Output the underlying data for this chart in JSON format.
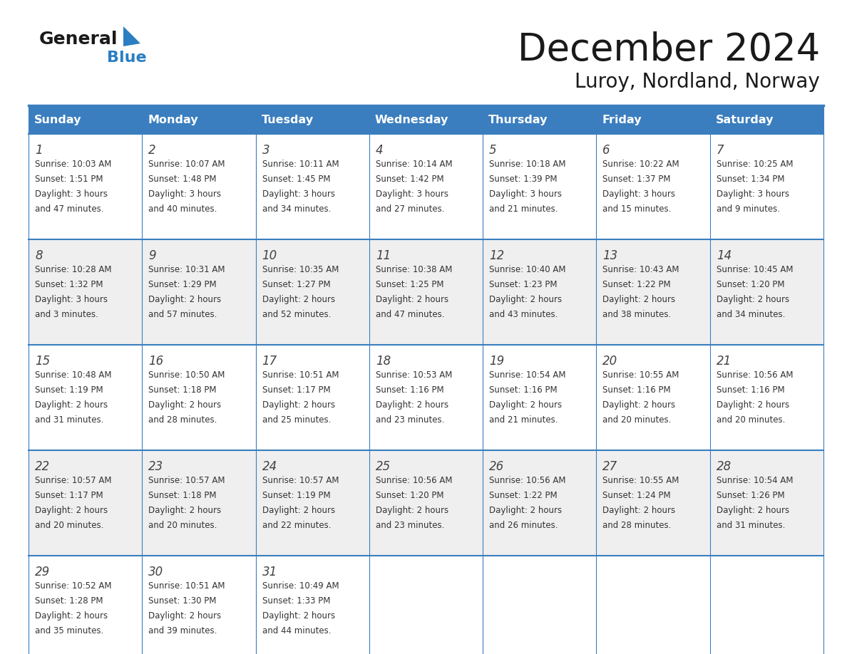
{
  "title": "December 2024",
  "subtitle": "Luroy, Nordland, Norway",
  "header_color": "#3A7EBF",
  "header_text_color": "#FFFFFF",
  "grid_line_color": "#3A7EBF",
  "bg_color": "#FFFFFF",
  "alt_row_color": "#EFEFEF",
  "day_headers": [
    "Sunday",
    "Monday",
    "Tuesday",
    "Wednesday",
    "Thursday",
    "Friday",
    "Saturday"
  ],
  "weeks": [
    [
      {
        "day": "1",
        "sunrise": "10:03 AM",
        "sunset": "1:51 PM",
        "daylight_h": "3 hours",
        "daylight_m": "47 minutes"
      },
      {
        "day": "2",
        "sunrise": "10:07 AM",
        "sunset": "1:48 PM",
        "daylight_h": "3 hours",
        "daylight_m": "40 minutes"
      },
      {
        "day": "3",
        "sunrise": "10:11 AM",
        "sunset": "1:45 PM",
        "daylight_h": "3 hours",
        "daylight_m": "34 minutes"
      },
      {
        "day": "4",
        "sunrise": "10:14 AM",
        "sunset": "1:42 PM",
        "daylight_h": "3 hours",
        "daylight_m": "27 minutes"
      },
      {
        "day": "5",
        "sunrise": "10:18 AM",
        "sunset": "1:39 PM",
        "daylight_h": "3 hours",
        "daylight_m": "21 minutes"
      },
      {
        "day": "6",
        "sunrise": "10:22 AM",
        "sunset": "1:37 PM",
        "daylight_h": "3 hours",
        "daylight_m": "15 minutes"
      },
      {
        "day": "7",
        "sunrise": "10:25 AM",
        "sunset": "1:34 PM",
        "daylight_h": "3 hours",
        "daylight_m": "9 minutes"
      }
    ],
    [
      {
        "day": "8",
        "sunrise": "10:28 AM",
        "sunset": "1:32 PM",
        "daylight_h": "3 hours",
        "daylight_m": "3 minutes"
      },
      {
        "day": "9",
        "sunrise": "10:31 AM",
        "sunset": "1:29 PM",
        "daylight_h": "2 hours",
        "daylight_m": "57 minutes"
      },
      {
        "day": "10",
        "sunrise": "10:35 AM",
        "sunset": "1:27 PM",
        "daylight_h": "2 hours",
        "daylight_m": "52 minutes"
      },
      {
        "day": "11",
        "sunrise": "10:38 AM",
        "sunset": "1:25 PM",
        "daylight_h": "2 hours",
        "daylight_m": "47 minutes"
      },
      {
        "day": "12",
        "sunrise": "10:40 AM",
        "sunset": "1:23 PM",
        "daylight_h": "2 hours",
        "daylight_m": "43 minutes"
      },
      {
        "day": "13",
        "sunrise": "10:43 AM",
        "sunset": "1:22 PM",
        "daylight_h": "2 hours",
        "daylight_m": "38 minutes"
      },
      {
        "day": "14",
        "sunrise": "10:45 AM",
        "sunset": "1:20 PM",
        "daylight_h": "2 hours",
        "daylight_m": "34 minutes"
      }
    ],
    [
      {
        "day": "15",
        "sunrise": "10:48 AM",
        "sunset": "1:19 PM",
        "daylight_h": "2 hours",
        "daylight_m": "31 minutes"
      },
      {
        "day": "16",
        "sunrise": "10:50 AM",
        "sunset": "1:18 PM",
        "daylight_h": "2 hours",
        "daylight_m": "28 minutes"
      },
      {
        "day": "17",
        "sunrise": "10:51 AM",
        "sunset": "1:17 PM",
        "daylight_h": "2 hours",
        "daylight_m": "25 minutes"
      },
      {
        "day": "18",
        "sunrise": "10:53 AM",
        "sunset": "1:16 PM",
        "daylight_h": "2 hours",
        "daylight_m": "23 minutes"
      },
      {
        "day": "19",
        "sunrise": "10:54 AM",
        "sunset": "1:16 PM",
        "daylight_h": "2 hours",
        "daylight_m": "21 minutes"
      },
      {
        "day": "20",
        "sunrise": "10:55 AM",
        "sunset": "1:16 PM",
        "daylight_h": "2 hours",
        "daylight_m": "20 minutes"
      },
      {
        "day": "21",
        "sunrise": "10:56 AM",
        "sunset": "1:16 PM",
        "daylight_h": "2 hours",
        "daylight_m": "20 minutes"
      }
    ],
    [
      {
        "day": "22",
        "sunrise": "10:57 AM",
        "sunset": "1:17 PM",
        "daylight_h": "2 hours",
        "daylight_m": "20 minutes"
      },
      {
        "day": "23",
        "sunrise": "10:57 AM",
        "sunset": "1:18 PM",
        "daylight_h": "2 hours",
        "daylight_m": "20 minutes"
      },
      {
        "day": "24",
        "sunrise": "10:57 AM",
        "sunset": "1:19 PM",
        "daylight_h": "2 hours",
        "daylight_m": "22 minutes"
      },
      {
        "day": "25",
        "sunrise": "10:56 AM",
        "sunset": "1:20 PM",
        "daylight_h": "2 hours",
        "daylight_m": "23 minutes"
      },
      {
        "day": "26",
        "sunrise": "10:56 AM",
        "sunset": "1:22 PM",
        "daylight_h": "2 hours",
        "daylight_m": "26 minutes"
      },
      {
        "day": "27",
        "sunrise": "10:55 AM",
        "sunset": "1:24 PM",
        "daylight_h": "2 hours",
        "daylight_m": "28 minutes"
      },
      {
        "day": "28",
        "sunrise": "10:54 AM",
        "sunset": "1:26 PM",
        "daylight_h": "2 hours",
        "daylight_m": "31 minutes"
      }
    ],
    [
      {
        "day": "29",
        "sunrise": "10:52 AM",
        "sunset": "1:28 PM",
        "daylight_h": "2 hours",
        "daylight_m": "35 minutes"
      },
      {
        "day": "30",
        "sunrise": "10:51 AM",
        "sunset": "1:30 PM",
        "daylight_h": "2 hours",
        "daylight_m": "39 minutes"
      },
      {
        "day": "31",
        "sunrise": "10:49 AM",
        "sunset": "1:33 PM",
        "daylight_h": "2 hours",
        "daylight_m": "44 minutes"
      },
      null,
      null,
      null,
      null
    ]
  ]
}
